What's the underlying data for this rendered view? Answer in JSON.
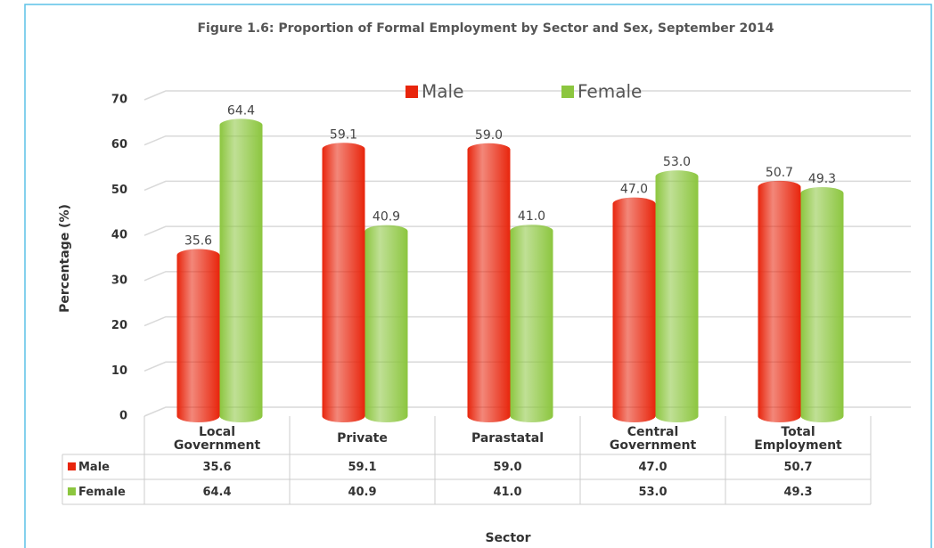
{
  "chart_data": {
    "type": "bar",
    "title": "Figure 1.6: Proportion of Formal Employment by Sector and Sex, September 2014",
    "categories": [
      "Local Government",
      "Private",
      "Parastatal",
      "Central Government",
      "Total Employment"
    ],
    "series": [
      {
        "name": "Male",
        "color": "#e8250c",
        "values": [
          35.6,
          59.1,
          59.0,
          47.0,
          50.7
        ],
        "value_labels": [
          "35.6",
          "59.1",
          "59.0",
          "47.0",
          "50.7"
        ]
      },
      {
        "name": "Female",
        "color": "#8cc63f",
        "values": [
          64.4,
          40.9,
          41.0,
          53.0,
          49.3
        ],
        "value_labels": [
          "64.4",
          "40.9",
          "41.0",
          "53.0",
          "49.3"
        ]
      }
    ],
    "ylim": [
      0,
      70
    ],
    "yticks": [
      0,
      10,
      20,
      30,
      40,
      50,
      60,
      70
    ],
    "grid": true,
    "ylabel": "Percentage (%)",
    "xlabel": "Sector",
    "legend": "top"
  }
}
